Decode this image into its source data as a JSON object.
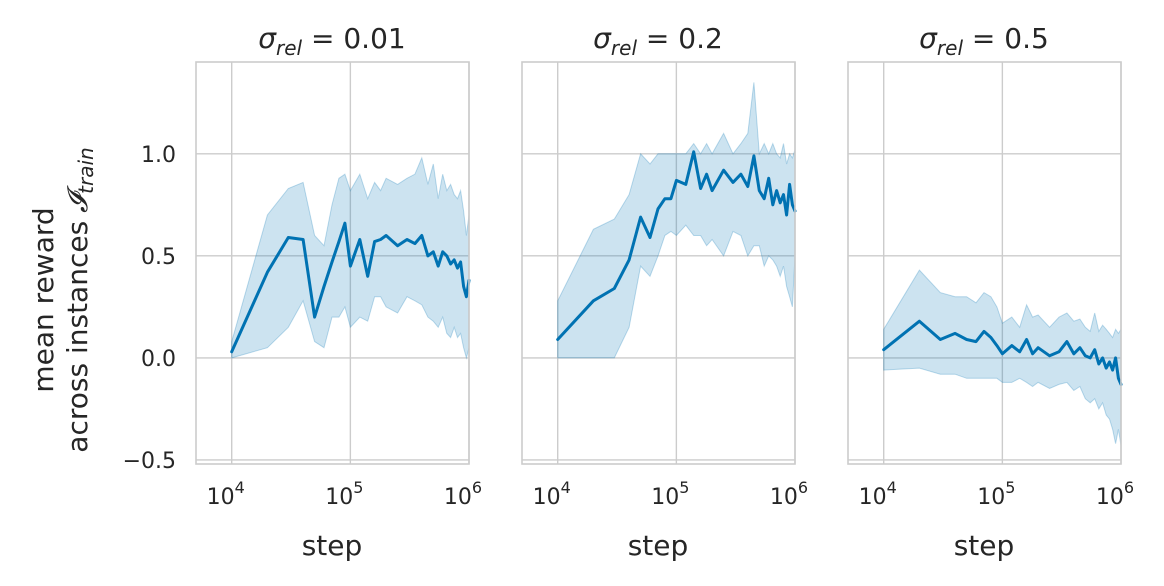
{
  "chart_data": [
    {
      "type": "line",
      "title_main": "σ",
      "title_sub": "rel",
      "title_value": " = 0.01",
      "xlabel": "step",
      "xscale": "log",
      "xlim": [
        5000,
        1000000
      ],
      "xticks": [
        {
          "base": "10",
          "exp": "4",
          "value": 10000
        },
        {
          "base": "10",
          "exp": "5",
          "value": 100000
        },
        {
          "base": "10",
          "exp": "6",
          "value": 1000000
        }
      ],
      "ylabel": [
        "mean reward",
        "across instances"
      ],
      "ylabel_symbol": "𝓘",
      "ylabel_sub": "train",
      "ylim": [
        -0.52,
        1.45
      ],
      "yticks": [
        {
          "label": "−0.5",
          "value": -0.5
        },
        {
          "label": "0.0",
          "value": 0.0
        },
        {
          "label": "0.5",
          "value": 0.5
        },
        {
          "label": "1.0",
          "value": 1.0
        }
      ],
      "grid": true,
      "series": [
        {
          "x": [
            10000,
            20000,
            30000,
            40000,
            50000,
            60000,
            70000,
            80000,
            90000,
            100000,
            120000,
            140000,
            160000,
            180000,
            200000,
            250000,
            300000,
            350000,
            400000,
            450000,
            500000,
            550000,
            600000,
            650000,
            700000,
            750000,
            800000,
            850000,
            900000,
            950000,
            1000000
          ],
          "y": [
            0.03,
            0.42,
            0.59,
            0.58,
            0.2,
            0.35,
            0.47,
            0.57,
            0.66,
            0.45,
            0.58,
            0.4,
            0.57,
            0.58,
            0.6,
            0.55,
            0.58,
            0.56,
            0.6,
            0.5,
            0.52,
            0.45,
            0.52,
            0.5,
            0.46,
            0.48,
            0.44,
            0.47,
            0.35,
            0.3,
            0.38
          ],
          "lower": [
            0.0,
            0.05,
            0.15,
            0.28,
            0.08,
            0.05,
            0.2,
            0.2,
            0.25,
            0.15,
            0.2,
            0.18,
            0.3,
            0.3,
            0.25,
            0.22,
            0.3,
            0.28,
            0.26,
            0.2,
            0.18,
            0.15,
            0.2,
            0.12,
            0.1,
            0.15,
            0.1,
            0.12,
            0.05,
            0.0,
            0.05
          ],
          "upper": [
            0.08,
            0.7,
            0.83,
            0.86,
            0.6,
            0.55,
            0.75,
            0.88,
            0.9,
            0.82,
            0.9,
            0.78,
            0.86,
            0.82,
            0.88,
            0.85,
            0.88,
            0.9,
            0.98,
            0.85,
            0.95,
            0.78,
            0.9,
            0.82,
            0.85,
            0.8,
            0.78,
            0.82,
            0.72,
            0.6,
            0.7
          ]
        }
      ]
    },
    {
      "type": "line",
      "title_main": "σ",
      "title_sub": "rel",
      "title_value": " = 0.2",
      "xlabel": "step",
      "xscale": "log",
      "xlim": [
        5000,
        1000000
      ],
      "xticks": [
        {
          "base": "10",
          "exp": "4",
          "value": 10000
        },
        {
          "base": "10",
          "exp": "5",
          "value": 100000
        },
        {
          "base": "10",
          "exp": "6",
          "value": 1000000
        }
      ],
      "ylim": [
        -0.52,
        1.45
      ],
      "grid": true,
      "series": [
        {
          "x": [
            10000,
            20000,
            30000,
            40000,
            50000,
            60000,
            70000,
            80000,
            90000,
            100000,
            120000,
            140000,
            160000,
            180000,
            200000,
            250000,
            300000,
            350000,
            400000,
            450000,
            500000,
            550000,
            600000,
            650000,
            700000,
            750000,
            800000,
            850000,
            900000,
            950000,
            1000000
          ],
          "y": [
            0.09,
            0.28,
            0.34,
            0.48,
            0.69,
            0.59,
            0.73,
            0.78,
            0.78,
            0.87,
            0.85,
            1.01,
            0.83,
            0.9,
            0.82,
            0.92,
            0.86,
            0.9,
            0.84,
            0.99,
            0.82,
            0.78,
            0.88,
            0.75,
            0.82,
            0.76,
            0.8,
            0.7,
            0.85,
            0.75,
            0.72
          ],
          "lower": [
            0.0,
            0.0,
            0.0,
            0.15,
            0.45,
            0.4,
            0.5,
            0.6,
            0.62,
            0.6,
            0.65,
            0.6,
            0.6,
            0.55,
            0.58,
            0.5,
            0.62,
            0.6,
            0.5,
            0.55,
            0.55,
            0.45,
            0.5,
            0.48,
            0.45,
            0.4,
            0.45,
            0.35,
            0.3,
            0.25,
            0.5
          ],
          "upper": [
            0.28,
            0.63,
            0.68,
            0.8,
            1.0,
            0.95,
            1.0,
            1.0,
            1.0,
            1.0,
            1.0,
            1.05,
            1.0,
            1.05,
            1.0,
            1.1,
            1.0,
            1.05,
            1.1,
            1.35,
            1.0,
            1.05,
            1.0,
            1.05,
            1.0,
            0.98,
            1.05,
            0.95,
            1.0,
            0.98,
            1.02
          ]
        }
      ]
    },
    {
      "type": "line",
      "title_main": "σ",
      "title_sub": "rel",
      "title_value": " = 0.5",
      "xlabel": "step",
      "xscale": "log",
      "xlim": [
        5000,
        1000000
      ],
      "xticks": [
        {
          "base": "10",
          "exp": "4",
          "value": 10000
        },
        {
          "base": "10",
          "exp": "5",
          "value": 100000
        },
        {
          "base": "10",
          "exp": "6",
          "value": 1000000
        }
      ],
      "ylim": [
        -0.52,
        1.45
      ],
      "grid": true,
      "series": [
        {
          "x": [
            10000,
            20000,
            30000,
            40000,
            50000,
            60000,
            70000,
            80000,
            90000,
            100000,
            120000,
            140000,
            160000,
            180000,
            200000,
            250000,
            300000,
            350000,
            400000,
            450000,
            500000,
            550000,
            600000,
            650000,
            700000,
            750000,
            800000,
            850000,
            900000,
            950000,
            1000000
          ],
          "y": [
            0.04,
            0.18,
            0.09,
            0.12,
            0.09,
            0.08,
            0.13,
            0.1,
            0.06,
            0.02,
            0.06,
            0.03,
            0.09,
            0.02,
            0.05,
            0.01,
            0.03,
            0.08,
            0.02,
            0.05,
            0.01,
            0.0,
            0.04,
            -0.03,
            0.0,
            -0.05,
            -0.02,
            -0.06,
            0.0,
            -0.1,
            -0.13
          ],
          "lower": [
            -0.06,
            -0.05,
            -0.08,
            -0.08,
            -0.1,
            -0.1,
            -0.1,
            -0.1,
            -0.1,
            -0.12,
            -0.12,
            -0.1,
            -0.12,
            -0.14,
            -0.12,
            -0.15,
            -0.13,
            -0.12,
            -0.16,
            -0.14,
            -0.2,
            -0.22,
            -0.2,
            -0.25,
            -0.22,
            -0.28,
            -0.3,
            -0.35,
            -0.42,
            -0.35,
            -0.43
          ],
          "upper": [
            0.14,
            0.43,
            0.32,
            0.3,
            0.3,
            0.27,
            0.32,
            0.3,
            0.25,
            0.17,
            0.2,
            0.15,
            0.26,
            0.2,
            0.21,
            0.15,
            0.2,
            0.22,
            0.18,
            0.19,
            0.15,
            0.13,
            0.22,
            0.13,
            0.16,
            0.14,
            0.12,
            0.1,
            0.14,
            0.12,
            0.14
          ]
        }
      ]
    }
  ]
}
